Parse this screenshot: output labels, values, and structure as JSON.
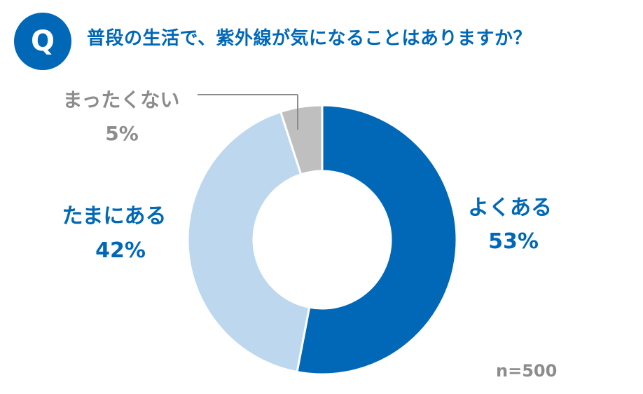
{
  "header": {
    "badge": "Q",
    "question": "普段の生活で、紫外線が気になることはありますか？"
  },
  "sample_size": "n=500",
  "colors": {
    "brand": "#0068b7",
    "dark_blue": "#0068b7",
    "light_blue": "#bdd7ee",
    "gray": "#bfbfbf",
    "gray_text": "#8c8c8c"
  },
  "chart_data": {
    "type": "pie",
    "title": "",
    "categories": [
      "よくある",
      "たまにある",
      "まったくない"
    ],
    "values": [
      53,
      42,
      5
    ],
    "unit": "%",
    "percent_labels": [
      "53%",
      "42%",
      "5%"
    ],
    "colors": [
      "#0068b7",
      "#bdd7ee",
      "#bfbfbf"
    ],
    "label_colors": [
      "#0068b7",
      "#0068b7",
      "#8c8c8c"
    ],
    "direction": "clockwise from top",
    "donut": true
  }
}
